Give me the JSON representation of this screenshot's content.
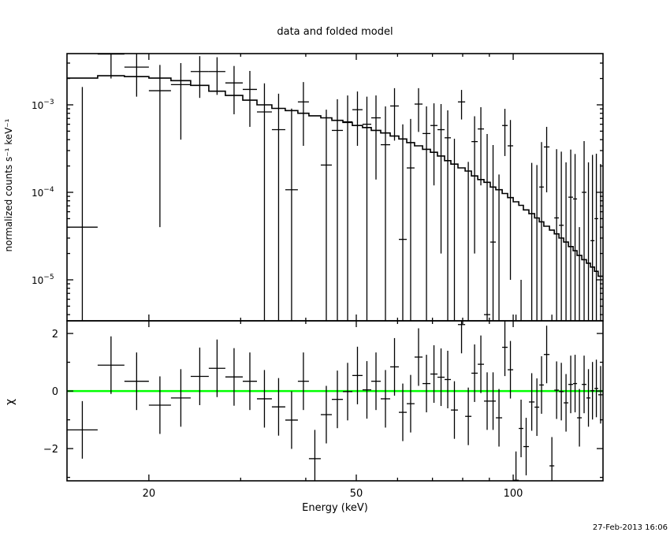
{
  "chart_data": {
    "type": "line",
    "title": "data and folded model",
    "xlabel": "Energy (keV)",
    "timestamp": "27-Feb-2013 16:06",
    "x_scale": "log",
    "xlim": [
      13.93,
      148.7
    ],
    "x_ticks": [
      {
        "value": 20,
        "label": "20"
      },
      {
        "value": 50,
        "label": "50"
      },
      {
        "value": 100,
        "label": "100"
      }
    ],
    "colors": {
      "data": "#000000",
      "model": "#000000",
      "zero_line": "#00ff00",
      "axes": "#000000"
    },
    "energy_edges_keV": [
      13.93,
      15.95,
      17.95,
      20.0,
      22.05,
      24.06,
      26.06,
      28.04,
      30.28,
      32.24,
      34.44,
      36.54,
      38.63,
      40.56,
      42.74,
      44.88,
      47.13,
      49.14,
      51.4,
      53.42,
      55.7,
      58.08,
      60.34,
      62.48,
      64.68,
      67.0,
      69.38,
      71.58,
      73.86,
      75.94,
      78.34,
      80.88,
      83.16,
      85.5,
      87.9,
      90.38,
      92.62,
      95.24,
      97.58,
      100,
      102.5,
      104.6,
      107.2,
      109.9,
      112.2,
      114.5,
      117.4,
      119.9,
      122.4,
      125.0,
      127.6,
      130.3,
      132.6,
      135.4,
      138.2,
      140.7,
      143.2,
      145.6,
      148.7
    ],
    "panels": [
      {
        "name": "spectrum",
        "ylabel": "normalized counts s⁻¹ keV⁻¹",
        "y_scale": "log",
        "ylim": [
          3.4e-06,
          0.00385
        ],
        "y_ticks": [
          {
            "value": 0.001,
            "base": "10",
            "exp": "−3"
          },
          {
            "value": 0.0001,
            "base": "10",
            "exp": "−4"
          },
          {
            "value": 1e-05,
            "base": "10",
            "exp": "−5"
          }
        ],
        "series": [
          {
            "name": "data",
            "style": "crosses",
            "values": [
              4e-05,
              0.0038,
              0.0027,
              0.00145,
              0.0017,
              0.0024,
              0.0024,
              0.00178,
              0.0015,
              0.00083,
              0.00052,
              0.000107,
              0.00108,
              -0.00022,
              0.000205,
              0.00051,
              0.00064,
              0.00088,
              0.0006,
              0.00071,
              0.00035,
              0.00097,
              2.9e-05,
              0.00019,
              0.00102,
              0.00047,
              0.00058,
              0.00052,
              0.00042,
              -0.00018,
              0.00108,
              -0.000177,
              0.00038,
              0.00053,
              4e-06,
              2.7e-05,
              -0.00034,
              0.00058,
              0.00034,
              -1.5e-05,
              -0.00021,
              -6.5e-05,
              -4.1e-05,
              -0.000145,
              0.000115,
              0.00033,
              -1e-05,
              5.1e-05,
              4.2e-05,
              -0.00011,
              8.8e-05,
              8.4e-05,
              -0.00021,
              0.0001,
              -5e-05,
              2.8e-05,
              5e-05,
              -1.9e-05
            ],
            "errors": [
              0.00156,
              0.0018,
              0.00146,
              0.00141,
              0.0013,
              0.0012,
              0.0011,
              0.001,
              0.00094,
              0.00093,
              0.00082,
              0.0008,
              0.00074,
              0.00022,
              0.000675,
              0.00065,
              0.00064,
              0.00054,
              0.00064,
              0.00057,
              0.00061,
              0.00058,
              0.00057,
              0.0005,
              0.00053,
              0.00049,
              0.00046,
              0.0005,
              0.000445,
              0.00059,
              0.0004,
              0.0004,
              0.00036,
              0.00041,
              0.00046,
              0.00032,
              0.0005,
              0.00032,
              0.00033,
              1.9e-05,
              0.00022,
              6.8e-05,
              0.000258,
              0.00035,
              0.00026,
              0.00023,
              1.4e-05,
              0.00026,
              0.00025,
              0.00033,
              0.00022,
              0.00019,
              0.00025,
              0.000285,
              0.00027,
              0.00024,
              0.000226,
              0.00023
            ]
          },
          {
            "name": "model",
            "style": "histogram",
            "values": [
              0.00202,
              0.00215,
              0.0021,
              0.00202,
              0.00189,
              0.00167,
              0.00143,
              0.00128,
              0.00113,
              0.001,
              0.00091,
              0.00086,
              0.0008,
              0.00075,
              0.00071,
              0.000665,
              0.00063,
              0.00058,
              0.00055,
              0.00051,
              0.000477,
              0.00044,
              0.000407,
              0.00037,
              0.00034,
              0.00031,
              0.000287,
              0.00026,
              0.00023,
              0.00021,
              0.00019,
              0.000175,
              0.000154,
              0.00014,
              0.00013,
              0.000115,
              0.000107,
              9.7e-05,
              8.7e-05,
              7.8e-05,
              7.1e-05,
              6.3e-05,
              5.7e-05,
              5.1e-05,
              4.6e-05,
              4.1e-05,
              3.7e-05,
              3.35e-05,
              3e-05,
              2.7e-05,
              2.4e-05,
              2.15e-05,
              1.9e-05,
              1.7e-05,
              1.55e-05,
              1.4e-05,
              1.25e-05,
              1.1e-05
            ]
          }
        ]
      },
      {
        "name": "residuals",
        "ylabel": "χ",
        "y_scale": "linear",
        "ylim": [
          -3.12,
          2.44
        ],
        "y_ticks": [
          {
            "value": 2,
            "label": "2"
          },
          {
            "value": 0,
            "label": "0"
          },
          {
            "value": -2,
            "label": "−2"
          }
        ],
        "zero_line": 0,
        "series": [
          {
            "name": "chi",
            "style": "crosses",
            "error": 1,
            "values": [
              -1.35,
              0.9,
              0.34,
              -0.49,
              -0.24,
              0.51,
              0.79,
              0.49,
              0.34,
              -0.27,
              -0.55,
              -1.01,
              0.34,
              -2.35,
              -0.82,
              -0.29,
              -0.02,
              0.54,
              0.04,
              0.34,
              -0.27,
              0.84,
              -0.74,
              -0.44,
              1.18,
              0.26,
              0.59,
              0.48,
              0.4,
              -0.66,
              2.31,
              -0.88,
              0.62,
              0.93,
              -0.35,
              -0.35,
              -0.93,
              1.52,
              0.74,
              -3.1,
              -1.3,
              -1.93,
              -0.38,
              -0.56,
              0.21,
              1.27,
              -2.6,
              0.03,
              -0.02,
              -0.41,
              0.23,
              0.26,
              -0.93,
              0.23,
              -0.24,
              0.01,
              0.09,
              -0.13
            ]
          }
        ]
      }
    ]
  }
}
